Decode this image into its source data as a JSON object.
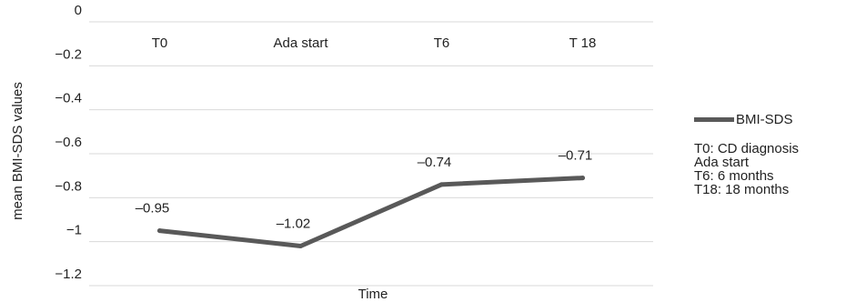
{
  "chart_data": {
    "type": "line",
    "categories": [
      "T0",
      "Ada start",
      "T6",
      "T 18"
    ],
    "series": [
      {
        "name": "BMI-SDS",
        "values": [
          -0.95,
          -1.02,
          -0.74,
          -0.71
        ],
        "color": "#595959"
      }
    ],
    "data_labels": [
      "–0.95",
      "–1.02",
      "–0.74",
      "–0.71"
    ],
    "xlabel": "Time",
    "ylabel": "mean BMI-SDS values",
    "ylim": [
      -1.2,
      0
    ],
    "yticks": [
      0,
      -0.2,
      -0.4,
      -0.6,
      -0.8,
      -1,
      -1.2
    ],
    "ytick_labels": [
      "0",
      "−0.2",
      "−0.4",
      "−0.6",
      "−0.8",
      "−1",
      "−1.2"
    ],
    "category_labels_position": "top",
    "grid": true,
    "gridline_color": "#d9d9d9",
    "legend_position": "right"
  },
  "legend": {
    "label": "BMI-SDS",
    "notes": [
      "T0: CD diagnosis",
      "Ada start",
      "T6: 6 months",
      "T18: 18 months"
    ]
  }
}
